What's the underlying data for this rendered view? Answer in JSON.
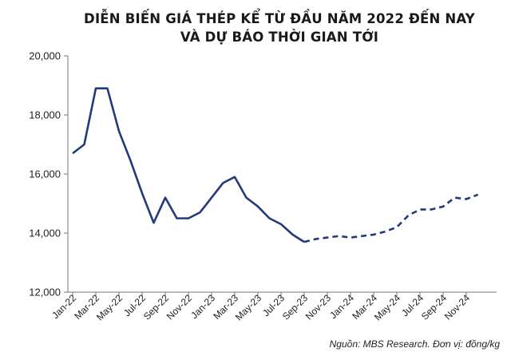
{
  "title_line1": "DIỄN BIẾN GIÁ THÉP KỂ TỪ ĐẦU NĂM 2022 ĐẾN NAY",
  "title_line2": "VÀ DỰ BÁO THỜI GIAN TỚI",
  "source": "Nguồn: MBS Research. Đơn vị: đồng/kg",
  "colors": {
    "line": "#233a7a",
    "axis": "#777777"
  },
  "chart_data": {
    "type": "line",
    "title": "DIỄN BIẾN GIÁ THÉP KỂ TỪ ĐẦU NĂM 2022 ĐẾN NAY VÀ DỰ BÁO THỜI GIAN TỚI",
    "xlabel": "",
    "ylabel": "",
    "ylim": [
      12000,
      20000
    ],
    "y_ticks": [
      12000,
      14000,
      16000,
      18000,
      20000
    ],
    "y_tick_labels": [
      "12,000",
      "14,000",
      "16,000",
      "18,000",
      "20,000"
    ],
    "grid": false,
    "x_ticks": [
      "Jan-22",
      "Mar-22",
      "May-22",
      "Jul-22",
      "Sep-22",
      "Nov-22",
      "Jan-23",
      "Mar-23",
      "May-23",
      "Jul-23",
      "Sep-23",
      "Nov-23",
      "Jan-24",
      "Mar-24",
      "May-24",
      "Jul-24",
      "Sep-24",
      "Nov-24"
    ],
    "series": [
      {
        "style": "solid",
        "x": [
          "Jan-22",
          "Feb-22",
          "Mar-22",
          "Apr-22",
          "May-22",
          "Jun-22",
          "Jul-22",
          "Aug-22",
          "Sep-22",
          "Oct-22",
          "Nov-22",
          "Dec-22",
          "Jan-23",
          "Feb-23",
          "Mar-23",
          "Apr-23",
          "May-23",
          "Jun-23",
          "Jul-23",
          "Aug-23",
          "Sep-23"
        ],
        "values": [
          16700,
          17000,
          18900,
          18900,
          17450,
          16450,
          15350,
          14350,
          15200,
          14500,
          14500,
          14700,
          15200,
          15700,
          15900,
          15200,
          14900,
          14500,
          14300,
          13950,
          13700
        ]
      },
      {
        "style": "dashed",
        "x": [
          "Sep-23",
          "Oct-23",
          "Nov-23",
          "Dec-23",
          "Jan-24",
          "Feb-24",
          "Mar-24",
          "Apr-24",
          "May-24",
          "Jun-24",
          "Jul-24",
          "Aug-24",
          "Sep-24",
          "Oct-24",
          "Nov-24",
          "Dec-24"
        ],
        "values": [
          13700,
          13800,
          13850,
          13900,
          13850,
          13900,
          13950,
          14050,
          14200,
          14600,
          14800,
          14800,
          14900,
          15200,
          15150,
          15300
        ]
      }
    ]
  }
}
